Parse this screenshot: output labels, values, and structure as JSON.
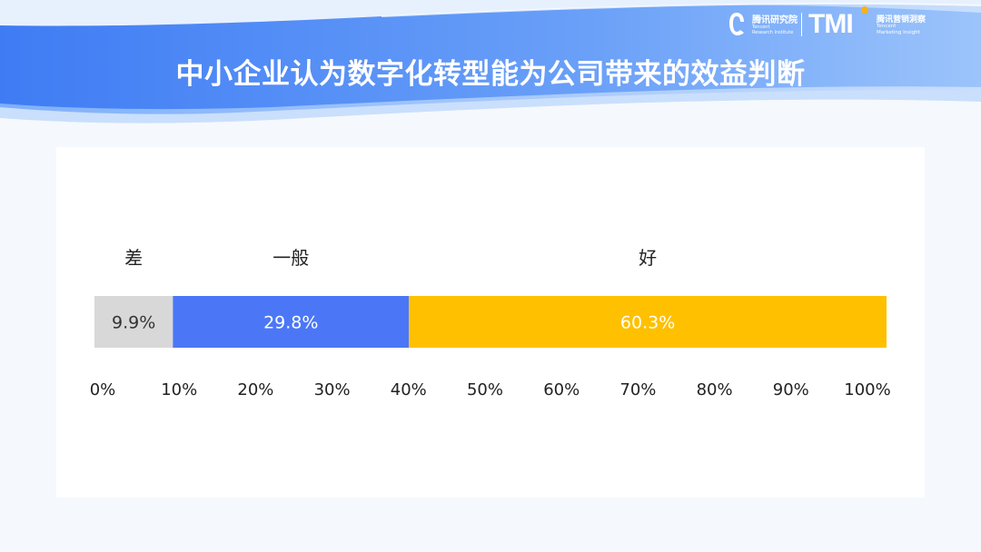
{
  "header": {
    "title": "中小企业认为数字化转型能为公司带来的效益判断",
    "logo_tri_cn": "腾讯研究院",
    "logo_tri_en_1": "Tencent",
    "logo_tri_en_2": "Research Institute",
    "logo_tmi": "TMI",
    "logo_tmi_cn": "腾讯营销洞察",
    "logo_tmi_en_1": "Tencent",
    "logo_tmi_en_2": "Marketing Insight"
  },
  "colors": {
    "banner_blue": "#4c86f5",
    "poor": "#d8d8d8",
    "average": "#4b77f7",
    "good": "#ffc000"
  },
  "chart_data": {
    "type": "bar",
    "orientation": "horizontal-stacked-100",
    "title": "中小企业认为数字化转型能为公司带来的效益判断",
    "series": [
      {
        "name": "差",
        "value": 9.9,
        "label": "9.9%",
        "color": "#d8d8d8",
        "label_color": "#333333"
      },
      {
        "name": "一般",
        "value": 29.8,
        "label": "29.8%",
        "color": "#4b77f7",
        "label_color": "#ffffff"
      },
      {
        "name": "好",
        "value": 60.3,
        "label": "60.3%",
        "color": "#ffc000",
        "label_color": "#ffffff"
      }
    ],
    "xlim": [
      0,
      100
    ],
    "x_ticks": [
      0,
      10,
      20,
      30,
      40,
      50,
      60,
      70,
      80,
      90,
      100
    ],
    "x_tick_labels": [
      "0%",
      "10%",
      "20%",
      "30%",
      "40%",
      "50%",
      "60%",
      "70%",
      "80%",
      "90%",
      "100%"
    ],
    "legend": "above-segments",
    "grid": false
  }
}
